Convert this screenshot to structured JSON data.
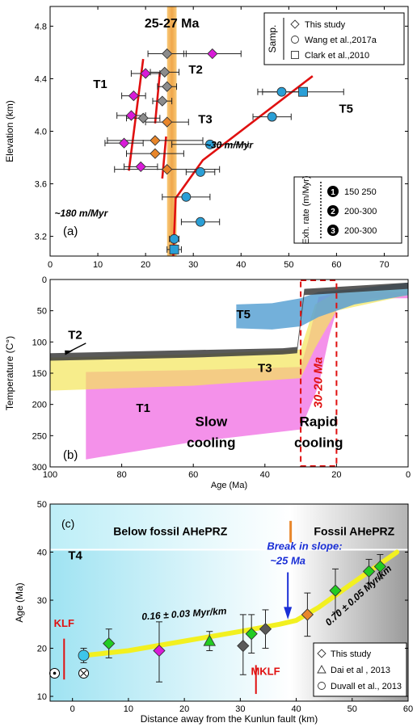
{
  "chart_data": [
    {
      "type": "scatter",
      "panel_label": "(a)",
      "xlabel": "",
      "ylabel": "Elevation (km)",
      "xlim": [
        0,
        75
      ],
      "ylim": [
        3.05,
        4.95
      ],
      "xticks": [
        0,
        10,
        20,
        30,
        40,
        50,
        60,
        70
      ],
      "yticks": [
        3.2,
        3.6,
        4.0,
        4.4,
        4.8
      ],
      "band": {
        "x0": 24.5,
        "x1": 26.5,
        "label": "25-27 Ma"
      },
      "legend": {
        "title": "Samp.",
        "position": "top-right",
        "entries": [
          {
            "marker": "diamond",
            "label": "This study"
          },
          {
            "marker": "circle",
            "label": "Wang et al.,2017a"
          },
          {
            "marker": "square",
            "label": "Clark et al.,2010"
          }
        ]
      },
      "legend2": {
        "title": "Exh. rate (m/Myr)",
        "position": "bottom-right",
        "entries": [
          {
            "num": "1",
            "label": "150 250"
          },
          {
            "num": "2",
            "label": "200-300"
          },
          {
            "num": "3",
            "label": "200-300"
          }
        ]
      },
      "labels": [
        {
          "text": "T1",
          "x": 10.5,
          "y": 4.33
        },
        {
          "text": "T2",
          "x": 30.5,
          "y": 4.44
        },
        {
          "text": "T3",
          "x": 32.5,
          "y": 4.06
        },
        {
          "text": "T5",
          "x": 62.0,
          "y": 4.14
        },
        {
          "text": "~30 m/Myr",
          "x": 37.5,
          "y": 3.87,
          "italic": true
        },
        {
          "text": "~180 m/Myr",
          "x": 6.5,
          "y": 3.35,
          "italic": true
        }
      ],
      "fit_lines": [
        {
          "name": "T1",
          "points": [
            [
              16.5,
              3.7
            ],
            [
              19.5,
              4.55
            ]
          ]
        },
        {
          "name": "T2",
          "points": [
            [
              22.0,
              4.06
            ],
            [
              23.0,
              4.45
            ]
          ]
        },
        {
          "name": "T3",
          "points": [
            [
              23.5,
              3.64
            ],
            [
              24.3,
              3.96
            ]
          ]
        },
        {
          "name": "T5",
          "points": [
            [
              25.8,
              3.05
            ],
            [
              26.3,
              3.49
            ],
            [
              32.0,
              3.78
            ],
            [
              55.0,
              4.42
            ]
          ]
        }
      ],
      "series": [
        {
          "group": "T1",
          "marker": "diamond",
          "color": "#d81bd8",
          "points": [
            {
              "x": 34.0,
              "y": 4.59,
              "xerr": [
                6.0,
                6.0
              ]
            },
            {
              "x": 20.0,
              "y": 4.44,
              "xerr": [
                3.0,
                3.0
              ]
            },
            {
              "x": 17.5,
              "y": 4.27,
              "xerr": [
                2.5,
                2.5
              ]
            },
            {
              "x": 17.0,
              "y": 4.12,
              "xerr": [
                3.0,
                3.0
              ]
            },
            {
              "x": 15.5,
              "y": 3.91,
              "xerr": [
                4.0,
                4.0
              ]
            },
            {
              "x": 19.0,
              "y": 3.73,
              "xerr": [
                3.5,
                3.5
              ]
            }
          ]
        },
        {
          "group": "T2",
          "marker": "diamond",
          "color": "#8c8c8c",
          "points": [
            {
              "x": 24.5,
              "y": 4.59,
              "xerr": [
                4.0,
                4.0
              ]
            },
            {
              "x": 24.0,
              "y": 4.45,
              "xerr": [
                3.0,
                3.0
              ]
            },
            {
              "x": 24.5,
              "y": 4.34,
              "xerr": [
                2.0,
                2.0
              ]
            },
            {
              "x": 23.5,
              "y": 4.23,
              "xerr": [
                2.0,
                2.0
              ]
            },
            {
              "x": 19.5,
              "y": 4.1,
              "xerr": [
                3.5,
                3.5
              ]
            }
          ]
        },
        {
          "group": "T3",
          "marker": "diamond",
          "color": "#e8862a",
          "points": [
            {
              "x": 24.5,
              "y": 4.07,
              "xerr": [
                4.5,
                4.5
              ]
            },
            {
              "x": 22.0,
              "y": 3.93,
              "xerr": [
                10.0,
                10.0
              ]
            },
            {
              "x": 22.0,
              "y": 3.83,
              "xerr": [
                6.0,
                6.0
              ]
            },
            {
              "x": 24.5,
              "y": 3.71,
              "xerr": [
                11.0,
                11.0
              ]
            }
          ]
        },
        {
          "group": "T5",
          "marker": "circle",
          "color": "#2a9fd6",
          "points": [
            {
              "x": 48.5,
              "y": 4.3,
              "xerr": [
                5.0,
                5.0
              ]
            },
            {
              "x": 46.5,
              "y": 4.11,
              "xerr": [
                4.0,
                4.0
              ]
            },
            {
              "x": 33.5,
              "y": 3.9,
              "xerr": [
                8.0,
                8.0
              ]
            },
            {
              "x": 31.5,
              "y": 3.69,
              "xerr": [
                3.0,
                3.0
              ]
            },
            {
              "x": 28.5,
              "y": 3.5,
              "xerr": [
                5.0,
                5.0
              ]
            },
            {
              "x": 31.5,
              "y": 3.31,
              "xerr": [
                4.0,
                4.0
              ]
            },
            {
              "x": 26.0,
              "y": 3.18,
              "xerr": [
                1.0,
                1.0
              ]
            }
          ]
        },
        {
          "group": "T5",
          "marker": "square",
          "color": "#2a9fd6",
          "points": [
            {
              "x": 53.0,
              "y": 4.3,
              "xerr": [
                8.5,
                8.5
              ]
            },
            {
              "x": 26.0,
              "y": 3.1,
              "xerr": [
                1.5,
                1.5
              ]
            }
          ]
        }
      ]
    },
    {
      "type": "area",
      "panel_label": "(b)",
      "xlabel": "Age (Ma)",
      "ylabel": "Temperature (C°)",
      "xlim": [
        100,
        0
      ],
      "ylim": [
        300,
        0
      ],
      "xticks": [
        100,
        80,
        60,
        40,
        20,
        0
      ],
      "yticks": [
        0,
        50,
        100,
        150,
        200,
        250,
        300
      ],
      "highlight": {
        "x0": 30,
        "x1": 20,
        "label": "30-20 Ma"
      },
      "labels": [
        {
          "text": "T2",
          "x": 93,
          "y": 95
        },
        {
          "text": "T3",
          "x": 40,
          "y": 148
        },
        {
          "text": "T5",
          "x": 46,
          "y": 62
        },
        {
          "text": "T1",
          "x": 74,
          "y": 212
        },
        {
          "text": "Slow",
          "x": 55,
          "y": 235
        },
        {
          "text": "cooling",
          "x": 55,
          "y": 268
        },
        {
          "text": "Rapid",
          "x": 25,
          "y": 235
        },
        {
          "text": "cooling",
          "x": 25,
          "y": 268
        }
      ],
      "envelopes": [
        {
          "name": "T1",
          "color": "#f27ee6",
          "opacity": 0.85,
          "upper": [
            [
              90,
              148
            ],
            [
              60,
              145
            ],
            [
              30,
              140
            ],
            [
              28,
              100
            ],
            [
              25,
              28
            ],
            [
              20,
              22
            ],
            [
              10,
              20
            ],
            [
              0,
              20
            ]
          ],
          "lower": [
            [
              90,
              288
            ],
            [
              60,
              260
            ],
            [
              30,
              240
            ],
            [
              25,
              170
            ],
            [
              22,
              90
            ],
            [
              20,
              50
            ],
            [
              10,
              30
            ],
            [
              0,
              30
            ]
          ]
        },
        {
          "name": "T3",
          "color": "#f3e55a",
          "opacity": 0.7,
          "upper": [
            [
              100,
              125
            ],
            [
              60,
              120
            ],
            [
              30,
              112
            ],
            [
              26,
              40
            ],
            [
              20,
              20
            ],
            [
              0,
              15
            ]
          ],
          "lower": [
            [
              100,
              178
            ],
            [
              60,
              170
            ],
            [
              30,
              158
            ],
            [
              26,
              110
            ],
            [
              20,
              50
            ],
            [
              0,
              25
            ]
          ]
        },
        {
          "name": "T5",
          "color": "#5ba2d4",
          "opacity": 0.85,
          "upper": [
            [
              48,
              40
            ],
            [
              38,
              38
            ],
            [
              30,
              30
            ],
            [
              25,
              20
            ],
            [
              15,
              15
            ],
            [
              0,
              5
            ]
          ],
          "lower": [
            [
              48,
              78
            ],
            [
              38,
              80
            ],
            [
              30,
              75
            ],
            [
              25,
              60
            ],
            [
              15,
              40
            ],
            [
              0,
              25
            ]
          ]
        },
        {
          "name": "T2",
          "color": "#3c3c3c",
          "opacity": 0.85,
          "upper": [
            [
              100,
              118
            ],
            [
              60,
              113
            ],
            [
              35,
              110
            ],
            [
              31,
              108
            ],
            [
              29,
              15
            ],
            [
              0,
              5
            ]
          ],
          "lower": [
            [
              100,
              130
            ],
            [
              60,
              125
            ],
            [
              35,
              120
            ],
            [
              31,
              118
            ],
            [
              29,
              25
            ],
            [
              0,
              15
            ]
          ]
        }
      ]
    },
    {
      "type": "scatter",
      "panel_label": "(c)",
      "xlabel": "Distance away from the Kunlun fault (km)",
      "ylabel": "Age (Ma)",
      "xlim": [
        -4,
        60
      ],
      "ylim": [
        9,
        50
      ],
      "xticks": [
        0,
        10,
        20,
        30,
        40,
        50,
        60
      ],
      "yticks": [
        10,
        20,
        30,
        40,
        50
      ],
      "zones": [
        {
          "text": "Below fossil AHePRZ",
          "x0": -4,
          "x1": 39
        },
        {
          "text": "Fossil AHePRZ",
          "x0": 39,
          "x1": 60
        }
      ],
      "labels": [
        {
          "text": "T4",
          "x": 0.5,
          "y": 38.5
        },
        {
          "text": "KLF",
          "x": -1.5,
          "y": 24.5
        },
        {
          "text": "MKLF",
          "x": 34.5,
          "y": 14.5
        },
        {
          "text": "Break in slope:",
          "x": 41.5,
          "y": 40.5,
          "italic": true
        },
        {
          "text": "~25 Ma",
          "x": 38.5,
          "y": 37.5,
          "italic": true
        },
        {
          "text": "0.16 ± 0.03 Myr/km",
          "x": 20,
          "y": 26.5,
          "italic": true
        },
        {
          "text": "0.70 ± 0.05 Myr/km",
          "x": 51.5,
          "y": 30.5,
          "italic": true
        }
      ],
      "trend": [
        [
          2,
          18.5
        ],
        [
          10,
          19.5
        ],
        [
          20,
          21.5
        ],
        [
          30,
          23.5
        ],
        [
          37,
          25.0
        ],
        [
          40,
          25.8
        ],
        [
          44,
          28.5
        ],
        [
          50,
          33.5
        ],
        [
          58,
          40.0
        ]
      ],
      "series": [
        {
          "marker": "circle",
          "color": "#3ec6ea",
          "points": [
            {
              "x": 2.0,
              "y": 18.5,
              "yerr": [
                1.5,
                1.5
              ]
            }
          ]
        },
        {
          "marker": "diamond",
          "color": "#22cc22",
          "points": [
            {
              "x": 6.5,
              "y": 21.0,
              "yerr": [
                3.0,
                3.0
              ]
            },
            {
              "x": 32.0,
              "y": 23.0,
              "yerr": [
                4.0,
                4.0
              ]
            },
            {
              "x": 47.0,
              "y": 32.0,
              "yerr": [
                4.5,
                4.5
              ]
            },
            {
              "x": 53.0,
              "y": 36.0,
              "yerr": [
                2.5,
                2.5
              ]
            },
            {
              "x": 55.0,
              "y": 37.0,
              "yerr": [
                2.5,
                2.5
              ]
            }
          ]
        },
        {
          "marker": "triangle",
          "color": "#22cc22",
          "points": [
            {
              "x": 24.5,
              "y": 21.5,
              "yerr": [
                2.0,
                2.0
              ]
            }
          ]
        },
        {
          "marker": "diamond",
          "color": "#d81bd8",
          "points": [
            {
              "x": 15.5,
              "y": 19.5,
              "yerr": [
                6.5,
                6.0
              ]
            }
          ]
        },
        {
          "marker": "diamond",
          "color": "#5a5a5a",
          "points": [
            {
              "x": 30.5,
              "y": 20.5,
              "yerr": [
                6.0,
                6.5
              ]
            },
            {
              "x": 34.5,
              "y": 24.0,
              "yerr": [
                4.0,
                4.0
              ]
            }
          ]
        },
        {
          "marker": "diamond",
          "color": "#e8862a",
          "points": [
            {
              "x": 42.0,
              "y": 27.0,
              "yerr": [
                4.5,
                4.5
              ]
            }
          ]
        }
      ],
      "legend": {
        "position": "bottom-right",
        "entries": [
          {
            "marker": "diamond",
            "label": "This study"
          },
          {
            "marker": "triangle",
            "label": "Dai et al , 2013"
          },
          {
            "marker": "circle",
            "label": "Duvall et al., 2013"
          }
        ]
      }
    }
  ]
}
